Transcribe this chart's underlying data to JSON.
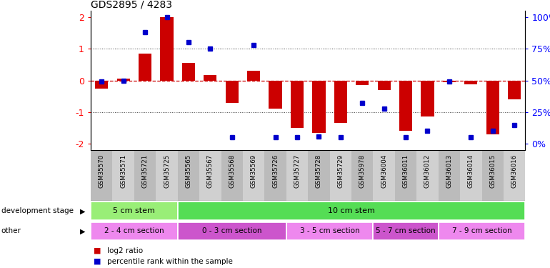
{
  "title": "GDS2895 / 4283",
  "samples": [
    "GSM35570",
    "GSM35571",
    "GSM35721",
    "GSM35725",
    "GSM35565",
    "GSM35567",
    "GSM35568",
    "GSM35569",
    "GSM35726",
    "GSM35727",
    "GSM35728",
    "GSM35729",
    "GSM35978",
    "GSM36004",
    "GSM36011",
    "GSM36012",
    "GSM36013",
    "GSM36014",
    "GSM36015",
    "GSM36016"
  ],
  "log2_ratio": [
    -0.25,
    0.05,
    0.85,
    2.0,
    0.55,
    0.18,
    -0.7,
    0.3,
    -0.9,
    -1.5,
    -1.65,
    -1.35,
    -0.15,
    -0.3,
    -1.6,
    -1.15,
    -0.05,
    -0.12,
    -1.7,
    -0.6
  ],
  "percentile": [
    49,
    50,
    88,
    100,
    80,
    75,
    5,
    78,
    5,
    5,
    6,
    5,
    32,
    28,
    5,
    10,
    49,
    5,
    10,
    15
  ],
  "bar_color": "#cc0000",
  "dot_color": "#0000cc",
  "ylim": [
    -2.2,
    2.2
  ],
  "yticks_left": [
    -2,
    -1,
    0,
    1,
    2
  ],
  "yticks_right": [
    0,
    25,
    50,
    75,
    100
  ],
  "hline_color": "#cc0000",
  "dotted_color": "#444444",
  "dev_stage_groups": [
    {
      "label": "5 cm stem",
      "start": 0,
      "end": 3,
      "color": "#99ee77"
    },
    {
      "label": "10 cm stem",
      "start": 4,
      "end": 19,
      "color": "#55dd55"
    }
  ],
  "other_groups": [
    {
      "label": "2 - 4 cm section",
      "start": 0,
      "end": 3,
      "color": "#ee88ee"
    },
    {
      "label": "0 - 3 cm section",
      "start": 4,
      "end": 8,
      "color": "#cc55cc"
    },
    {
      "label": "3 - 5 cm section",
      "start": 9,
      "end": 12,
      "color": "#ee88ee"
    },
    {
      "label": "5 - 7 cm section",
      "start": 13,
      "end": 15,
      "color": "#cc55cc"
    },
    {
      "label": "7 - 9 cm section",
      "start": 16,
      "end": 19,
      "color": "#ee88ee"
    }
  ],
  "legend_items": [
    {
      "label": "log2 ratio",
      "color": "#cc0000"
    },
    {
      "label": "percentile rank within the sample",
      "color": "#0000cc"
    }
  ],
  "tick_bg_even": "#bbbbbb",
  "tick_bg_odd": "#d0d0d0"
}
